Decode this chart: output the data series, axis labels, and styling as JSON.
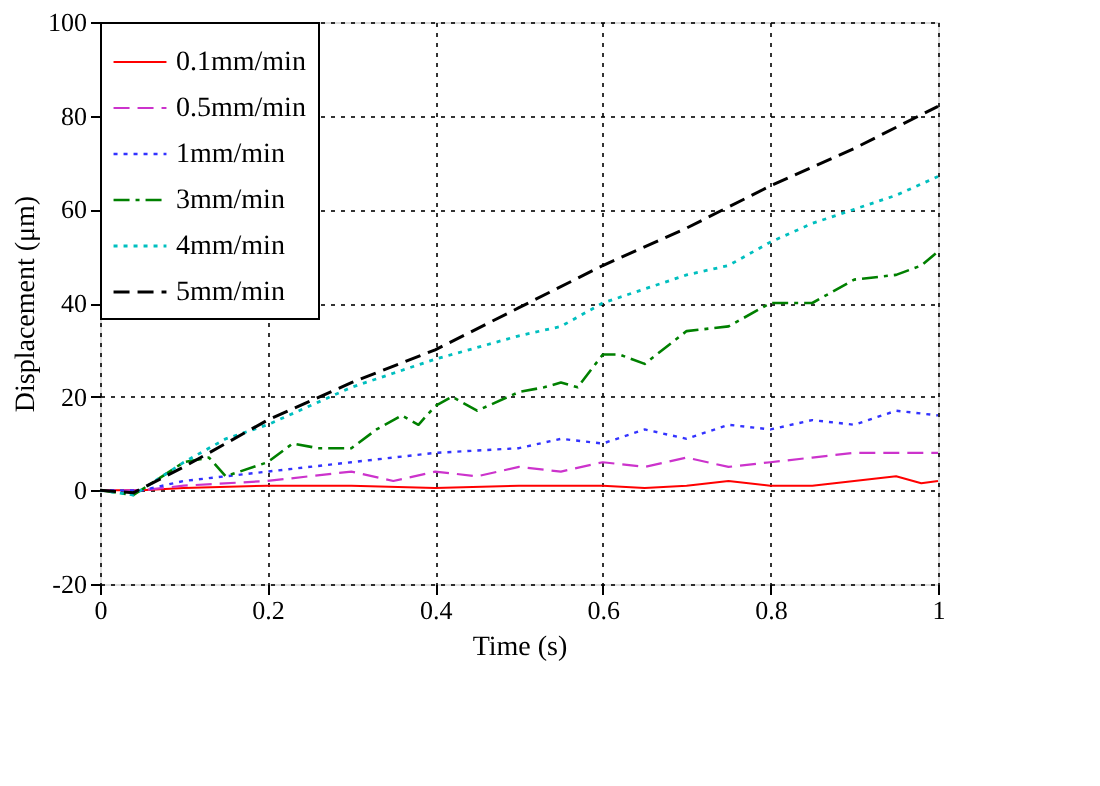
{
  "chart_data": {
    "type": "line",
    "xlabel": "Time (s)",
    "ylabel": "Displacement (μm)",
    "xlim": [
      0,
      1
    ],
    "ylim": [
      -20,
      100
    ],
    "xticks": [
      0,
      0.2,
      0.4,
      0.6,
      0.8,
      1
    ],
    "yticks": [
      -20,
      0,
      20,
      40,
      60,
      80,
      100
    ],
    "grid": true,
    "legend": "top left",
    "marker": "none",
    "series": [
      {
        "name": "0.1mm/min",
        "color": "#ff0000",
        "line_style": "solid",
        "x": [
          0,
          0.05,
          0.1,
          0.2,
          0.3,
          0.4,
          0.5,
          0.6,
          0.65,
          0.7,
          0.75,
          0.8,
          0.85,
          0.9,
          0.95,
          0.98,
          1.0
        ],
        "values": [
          0,
          0,
          0.5,
          1,
          1,
          0.5,
          1,
          1,
          0.5,
          1,
          2,
          1,
          1,
          2,
          3,
          1.5,
          2
        ]
      },
      {
        "name": "0.5mm/min",
        "color": "#cc33cc",
        "line_style": "dashed",
        "x": [
          0,
          0.05,
          0.1,
          0.2,
          0.3,
          0.35,
          0.4,
          0.45,
          0.5,
          0.55,
          0.6,
          0.65,
          0.7,
          0.75,
          0.8,
          0.85,
          0.9,
          1.0
        ],
        "values": [
          0,
          0,
          1,
          2,
          4,
          2,
          4,
          3,
          5,
          4,
          6,
          5,
          7,
          5,
          6,
          7,
          8,
          8
        ]
      },
      {
        "name": "1mm/min",
        "color": "#3333ff",
        "line_style": "dotted",
        "x": [
          0,
          0.05,
          0.1,
          0.2,
          0.3,
          0.4,
          0.5,
          0.55,
          0.6,
          0.65,
          0.7,
          0.75,
          0.8,
          0.85,
          0.9,
          0.95,
          1.0
        ],
        "values": [
          0,
          0,
          2,
          4,
          6,
          8,
          9,
          11,
          10,
          13,
          11,
          14,
          13,
          15,
          14,
          17,
          16
        ]
      },
      {
        "name": "3mm/min",
        "color": "#008000",
        "line_style": "dashdot",
        "x": [
          0,
          0.04,
          0.1,
          0.13,
          0.15,
          0.2,
          0.23,
          0.26,
          0.3,
          0.33,
          0.36,
          0.38,
          0.4,
          0.42,
          0.45,
          0.5,
          0.53,
          0.55,
          0.57,
          0.6,
          0.62,
          0.65,
          0.7,
          0.75,
          0.8,
          0.85,
          0.9,
          0.95,
          0.98,
          1.0
        ],
        "values": [
          0,
          -1,
          6,
          7,
          3,
          6,
          10,
          9,
          9,
          13,
          16,
          14,
          18,
          20,
          17,
          21,
          22,
          23,
          22,
          29,
          29,
          27,
          34,
          35,
          40,
          40,
          45,
          46,
          48,
          51
        ]
      },
      {
        "name": "4mm/min",
        "color": "#00bfbf",
        "line_style": "dotted",
        "x": [
          0,
          0.04,
          0.1,
          0.15,
          0.2,
          0.3,
          0.35,
          0.4,
          0.5,
          0.55,
          0.6,
          0.65,
          0.7,
          0.75,
          0.8,
          0.85,
          0.9,
          0.95,
          1.0
        ],
        "values": [
          0,
          -1,
          6,
          11,
          14,
          22,
          25,
          28,
          33,
          35,
          40,
          43,
          46,
          48,
          53,
          57,
          60,
          63,
          67
        ]
      },
      {
        "name": "5mm/min",
        "color": "#000000",
        "line_style": "dashed",
        "x": [
          0,
          0.04,
          0.1,
          0.2,
          0.3,
          0.4,
          0.5,
          0.6,
          0.7,
          0.8,
          0.9,
          1.0
        ],
        "values": [
          0,
          -0.5,
          5,
          15,
          23,
          30,
          39,
          48,
          56,
          65,
          73,
          82
        ]
      }
    ]
  }
}
